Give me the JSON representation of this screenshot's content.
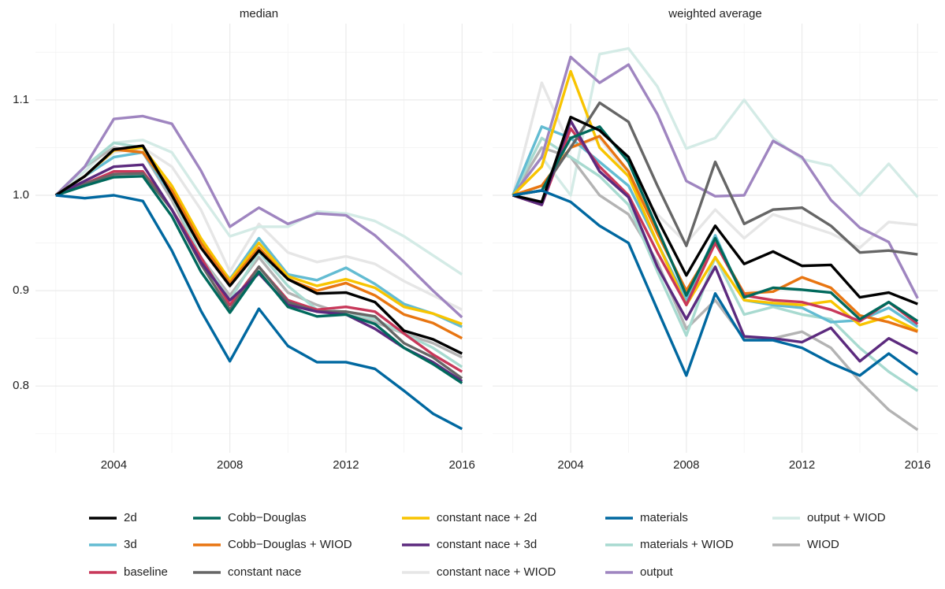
{
  "chart_data": [
    {
      "type": "line",
      "title": "median",
      "x": [
        2002,
        2003,
        2004,
        2005,
        2006,
        2007,
        2008,
        2009,
        2010,
        2011,
        2012,
        2013,
        2014,
        2015,
        2016
      ],
      "xlim": [
        2001.3,
        2016.7
      ],
      "xticks": [
        2004,
        2008,
        2012,
        2016
      ],
      "ylim": [
        0.73,
        1.18
      ],
      "yticks": [
        0.8,
        0.9,
        {
          "value": 1,
          "label": "1.0"
        },
        1.1
      ],
      "grid": true,
      "series": [
        {
          "name": "constant nace + WIOD",
          "color": "#e6e6e6",
          "values": [
            1.0,
            1.02,
            1.045,
            1.05,
            1.03,
            0.985,
            0.92,
            0.97,
            0.94,
            0.93,
            0.936,
            0.928,
            0.91,
            0.895,
            0.88
          ]
        },
        {
          "name": "output + WIOD",
          "color": "#d4ebe6",
          "values": [
            1.0,
            1.025,
            1.055,
            1.058,
            1.045,
            1.0,
            0.957,
            0.967,
            0.967,
            0.983,
            0.981,
            0.973,
            0.957,
            0.937,
            0.917
          ]
        },
        {
          "name": "WIOD",
          "color": "#b3b3b3",
          "values": [
            1.0,
            1.03,
            1.05,
            1.045,
            0.995,
            0.935,
            0.895,
            0.935,
            0.898,
            0.885,
            0.875,
            0.867,
            0.855,
            0.845,
            0.83
          ]
        },
        {
          "name": "materials + WIOD",
          "color": "#a8dad0",
          "values": [
            1.0,
            1.03,
            1.055,
            1.05,
            1.0,
            0.935,
            0.89,
            0.94,
            0.905,
            0.88,
            0.878,
            0.87,
            0.855,
            0.84,
            0.82
          ]
        },
        {
          "name": "output",
          "color": "#9f85c0",
          "values": [
            1.0,
            1.03,
            1.08,
            1.083,
            1.075,
            1.026,
            0.967,
            0.987,
            0.97,
            0.981,
            0.979,
            0.958,
            0.93,
            0.9,
            0.872
          ]
        },
        {
          "name": "3d",
          "color": "#63bcd2",
          "values": [
            1.0,
            1.02,
            1.04,
            1.045,
            1.0,
            0.95,
            0.912,
            0.955,
            0.917,
            0.911,
            0.924,
            0.907,
            0.886,
            0.876,
            0.862
          ]
        },
        {
          "name": "constant nace + 2d",
          "color": "#f8c400",
          "values": [
            1.0,
            1.02,
            1.047,
            1.05,
            1.01,
            0.955,
            0.911,
            0.95,
            0.915,
            0.905,
            0.912,
            0.903,
            0.883,
            0.876,
            0.865
          ]
        },
        {
          "name": "Cobb−Douglas + WIOD",
          "color": "#e87511",
          "values": [
            1.0,
            1.02,
            1.048,
            1.045,
            1.005,
            0.95,
            0.908,
            0.945,
            0.912,
            0.9,
            0.908,
            0.895,
            0.875,
            0.866,
            0.85
          ]
        },
        {
          "name": "baseline",
          "color": "#c8385a",
          "values": [
            1.0,
            1.012,
            1.025,
            1.025,
            0.985,
            0.935,
            0.885,
            0.925,
            0.89,
            0.88,
            0.883,
            0.878,
            0.855,
            0.833,
            0.815
          ]
        },
        {
          "name": "constant nace",
          "color": "#666666",
          "values": [
            1.0,
            1.012,
            1.022,
            1.023,
            0.985,
            0.928,
            0.88,
            0.925,
            0.888,
            0.878,
            0.878,
            0.873,
            0.845,
            0.83,
            0.808
          ]
        },
        {
          "name": "constant nace + 3d",
          "color": "#5c2a7e",
          "values": [
            1.0,
            1.015,
            1.03,
            1.032,
            0.985,
            0.93,
            0.89,
            0.918,
            0.885,
            0.878,
            0.875,
            0.86,
            0.84,
            0.825,
            0.805
          ]
        },
        {
          "name": "Cobb−Douglas",
          "color": "#00695c",
          "values": [
            1.0,
            1.01,
            1.019,
            1.02,
            0.978,
            0.92,
            0.877,
            0.92,
            0.883,
            0.873,
            0.875,
            0.865,
            0.84,
            0.823,
            0.803
          ]
        },
        {
          "name": "2d",
          "color": "#000000",
          "values": [
            1.0,
            1.02,
            1.048,
            1.052,
            1.0,
            0.945,
            0.905,
            0.942,
            0.912,
            0.897,
            0.898,
            0.888,
            0.858,
            0.849,
            0.834
          ]
        },
        {
          "name": "materials",
          "color": "#0068a0",
          "values": [
            1.0,
            0.997,
            1.0,
            0.994,
            0.942,
            0.879,
            0.826,
            0.881,
            0.842,
            0.825,
            0.825,
            0.818,
            0.795,
            0.771,
            0.755
          ]
        }
      ]
    },
    {
      "type": "line",
      "title": "weighted average",
      "x": [
        2002,
        2003,
        2004,
        2005,
        2006,
        2007,
        2008,
        2009,
        2010,
        2011,
        2012,
        2013,
        2014,
        2015,
        2016
      ],
      "xlim": [
        2001.3,
        2016.7
      ],
      "xticks": [
        2004,
        2008,
        2012,
        2016
      ],
      "ylim": [
        0.73,
        1.18
      ],
      "yticks": [
        0.8,
        0.9,
        1,
        1.1
      ],
      "grid": true,
      "series": [
        {
          "name": "constant nace + WIOD",
          "color": "#e6e6e6",
          "values": [
            1.0,
            1.118,
            1.05,
            1.06,
            1.02,
            0.98,
            0.95,
            0.985,
            0.955,
            0.98,
            0.97,
            0.96,
            0.945,
            0.972,
            0.969
          ]
        },
        {
          "name": "output + WIOD",
          "color": "#d4ebe6",
          "values": [
            1.0,
            1.04,
            1.0,
            1.148,
            1.154,
            1.114,
            1.049,
            1.06,
            1.1,
            1.06,
            1.038,
            1.031,
            1.0,
            1.033,
            0.998
          ]
        },
        {
          "name": "WIOD",
          "color": "#b3b3b3",
          "values": [
            1.0,
            1.05,
            1.04,
            1.0,
            0.98,
            0.93,
            0.86,
            0.89,
            0.85,
            0.85,
            0.857,
            0.84,
            0.805,
            0.775,
            0.754
          ]
        },
        {
          "name": "materials + WIOD",
          "color": "#a8dad0",
          "values": [
            1.0,
            1.06,
            1.04,
            1.02,
            0.99,
            0.92,
            0.853,
            0.935,
            0.875,
            0.883,
            0.875,
            0.87,
            0.84,
            0.815,
            0.795
          ]
        },
        {
          "name": "output",
          "color": "#9f85c0",
          "values": [
            1.0,
            1.04,
            1.145,
            1.118,
            1.137,
            1.085,
            1.015,
            0.999,
            1.0,
            1.057,
            1.04,
            0.995,
            0.966,
            0.951,
            0.892
          ]
        },
        {
          "name": "3d",
          "color": "#63bcd2",
          "values": [
            1.0,
            1.072,
            1.06,
            1.035,
            1.01,
            0.95,
            0.89,
            0.958,
            0.89,
            0.885,
            0.882,
            0.867,
            0.869,
            0.882,
            0.862
          ]
        },
        {
          "name": "constant nace + 2d",
          "color": "#f8c400",
          "values": [
            1.0,
            1.03,
            1.13,
            1.05,
            1.02,
            0.95,
            0.885,
            0.935,
            0.89,
            0.887,
            0.885,
            0.889,
            0.864,
            0.873,
            0.858
          ]
        },
        {
          "name": "Cobb−Douglas + WIOD",
          "color": "#e87511",
          "values": [
            1.0,
            1.01,
            1.05,
            1.062,
            1.025,
            0.96,
            0.9,
            0.95,
            0.897,
            0.899,
            0.914,
            0.903,
            0.874,
            0.867,
            0.857
          ]
        },
        {
          "name": "baseline",
          "color": "#c8385a",
          "values": [
            1.0,
            0.99,
            1.07,
            1.03,
            1.0,
            0.94,
            0.885,
            0.95,
            0.895,
            0.89,
            0.888,
            0.88,
            0.868,
            0.888,
            0.865
          ]
        },
        {
          "name": "constant nace",
          "color": "#666666",
          "values": [
            1.0,
            1.005,
            1.05,
            1.097,
            1.077,
            1.01,
            0.947,
            1.035,
            0.97,
            0.985,
            0.987,
            0.968,
            0.94,
            0.942,
            0.938
          ]
        },
        {
          "name": "constant nace + 3d",
          "color": "#5c2a7e",
          "values": [
            1.0,
            0.99,
            1.078,
            1.025,
            0.998,
            0.925,
            0.87,
            0.925,
            0.852,
            0.85,
            0.846,
            0.861,
            0.826,
            0.85,
            0.834
          ]
        },
        {
          "name": "Cobb−Douglas",
          "color": "#00695c",
          "values": [
            1.0,
            1.005,
            1.06,
            1.072,
            1.035,
            0.965,
            0.895,
            0.955,
            0.893,
            0.903,
            0.901,
            0.898,
            0.87,
            0.888,
            0.868
          ]
        },
        {
          "name": "2d",
          "color": "#000000",
          "values": [
            1.0,
            0.993,
            1.082,
            1.068,
            1.04,
            0.975,
            0.916,
            0.968,
            0.928,
            0.941,
            0.926,
            0.927,
            0.893,
            0.898,
            0.886
          ]
        },
        {
          "name": "materials",
          "color": "#0068a0",
          "values": [
            1.0,
            1.005,
            0.993,
            0.968,
            0.95,
            0.88,
            0.811,
            0.897,
            0.848,
            0.848,
            0.84,
            0.824,
            0.811,
            0.834,
            0.812
          ]
        }
      ]
    }
  ]
}
